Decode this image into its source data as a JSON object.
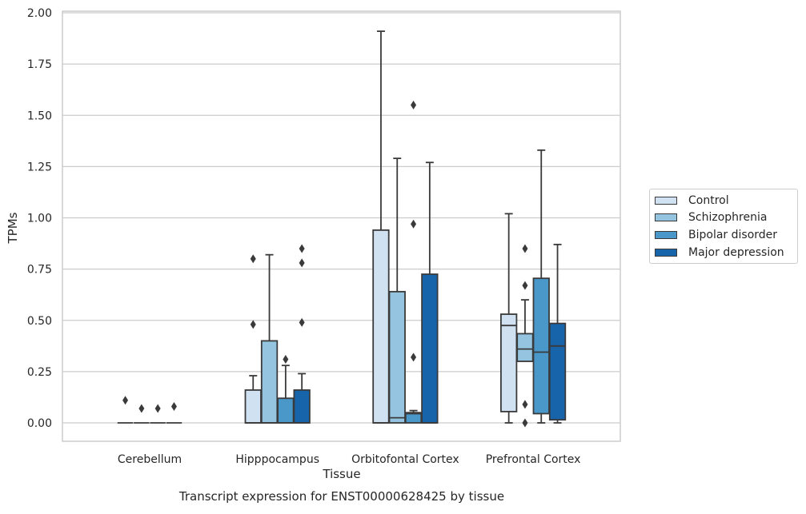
{
  "chart_data": {
    "type": "box",
    "title": "Transcript expression for ENST00000628425 by tissue",
    "xlabel": "Tissue",
    "ylabel": "TPMs",
    "ylim": [
      -0.09,
      2.01
    ],
    "yticks": [
      "0.00",
      "0.25",
      "0.50",
      "0.75",
      "1.00",
      "1.25",
      "1.50",
      "1.75",
      "2.00"
    ],
    "ytick_values": [
      0,
      0.25,
      0.5,
      0.75,
      1.0,
      1.25,
      1.5,
      1.75,
      2.0
    ],
    "grid": true,
    "legend_position": "right",
    "categories": [
      "Cerebellum",
      "Hipppocampus",
      "Orbitofontal Cortex",
      "Prefrontal Cortex"
    ],
    "series": [
      {
        "name": "Control",
        "color": "#d0e1f2",
        "boxes": [
          {
            "whislo": 0,
            "q1": 0,
            "med": 0,
            "q3": 0,
            "whishi": 0,
            "fliers": [
              0.11
            ]
          },
          {
            "whislo": 0,
            "q1": 0,
            "med": 0,
            "q3": 0.16,
            "whishi": 0.23,
            "fliers": [
              0.48,
              0.8
            ]
          },
          {
            "whislo": 0,
            "q1": 0,
            "med": 0,
            "q3": 0.94,
            "whishi": 1.91,
            "fliers": []
          },
          {
            "whislo": 0,
            "q1": 0.055,
            "med": 0.475,
            "q3": 0.53,
            "whishi": 1.02,
            "fliers": []
          }
        ]
      },
      {
        "name": "Schizophrenia",
        "color": "#94c4df",
        "boxes": [
          {
            "whislo": 0,
            "q1": 0,
            "med": 0,
            "q3": 0,
            "whishi": 0,
            "fliers": [
              0.07
            ]
          },
          {
            "whislo": 0,
            "q1": 0,
            "med": 0,
            "q3": 0.4,
            "whishi": 0.82,
            "fliers": []
          },
          {
            "whislo": 0,
            "q1": 0,
            "med": 0.025,
            "q3": 0.64,
            "whishi": 1.29,
            "fliers": []
          },
          {
            "whislo": 0.3,
            "q1": 0.3,
            "med": 0.36,
            "q3": 0.435,
            "whishi": 0.6,
            "fliers": [
              0.0,
              0.09,
              0.67,
              0.85
            ]
          }
        ]
      },
      {
        "name": "Bipolar disorder",
        "color": "#4a98c9",
        "boxes": [
          {
            "whislo": 0,
            "q1": 0,
            "med": 0,
            "q3": 0,
            "whishi": 0,
            "fliers": [
              0.07
            ]
          },
          {
            "whislo": 0,
            "q1": 0,
            "med": 0,
            "q3": 0.12,
            "whishi": 0.28,
            "fliers": [
              0.31
            ]
          },
          {
            "whislo": 0,
            "q1": 0,
            "med": 0.045,
            "q3": 0.05,
            "whishi": 0.06,
            "fliers": [
              0.32,
              0.97,
              1.55
            ]
          },
          {
            "whislo": 0,
            "q1": 0.045,
            "med": 0.345,
            "q3": 0.705,
            "whishi": 1.33,
            "fliers": []
          }
        ]
      },
      {
        "name": "Major depression",
        "color": "#1764ab",
        "boxes": [
          {
            "whislo": 0,
            "q1": 0,
            "med": 0,
            "q3": 0,
            "whishi": 0,
            "fliers": [
              0.08
            ]
          },
          {
            "whislo": 0,
            "q1": 0,
            "med": 0,
            "q3": 0.16,
            "whishi": 0.24,
            "fliers": [
              0.49,
              0.78,
              0.85
            ]
          },
          {
            "whislo": 0,
            "q1": 0,
            "med": 0,
            "q3": 0.725,
            "whishi": 1.27,
            "fliers": []
          },
          {
            "whislo": 0,
            "q1": 0.015,
            "med": 0.375,
            "q3": 0.485,
            "whishi": 0.87,
            "fliers": []
          }
        ]
      }
    ]
  }
}
